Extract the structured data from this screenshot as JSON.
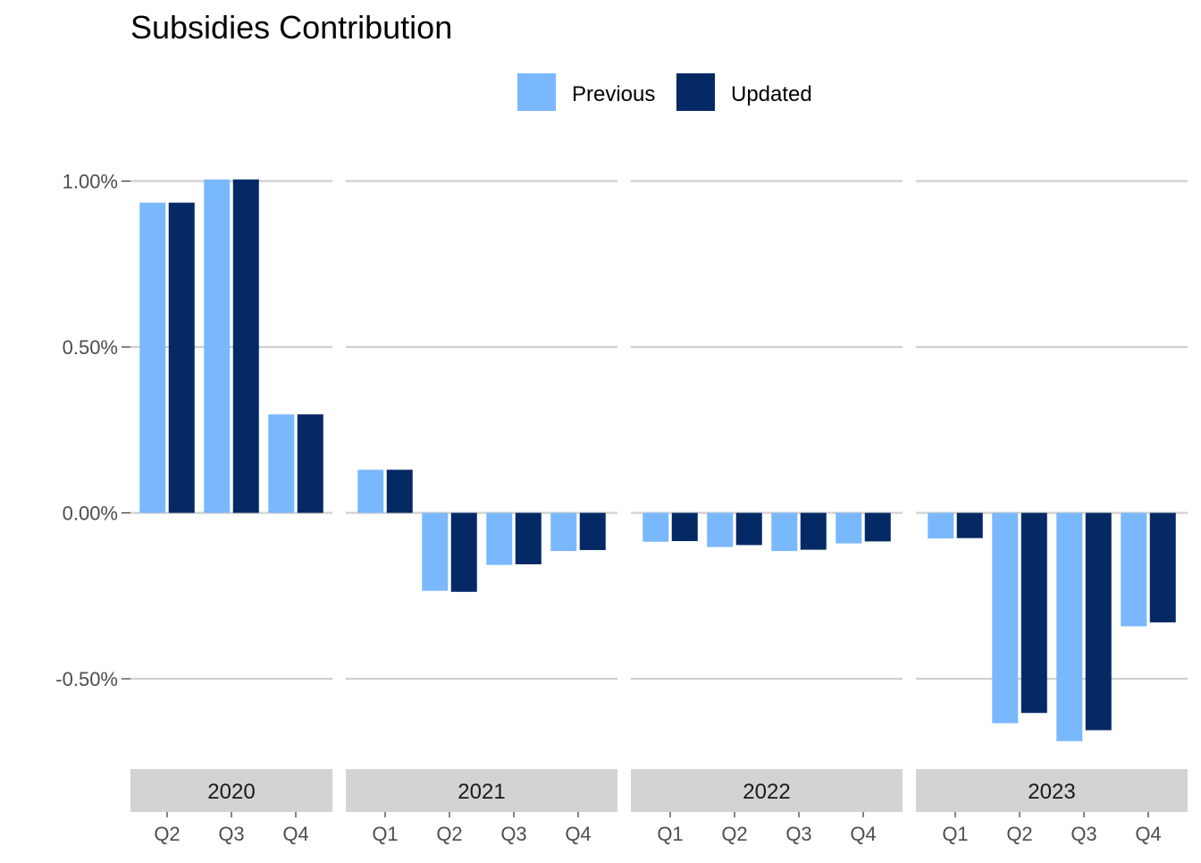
{
  "chart_data": {
    "type": "bar",
    "title": "Subsidies Contribution",
    "xlabel": "",
    "ylabel": "",
    "ylim": [
      -0.7,
      1.0
    ],
    "y_ticks": [
      {
        "value": 1.0,
        "label": "1.00%"
      },
      {
        "value": 0.5,
        "label": "0.50%"
      },
      {
        "value": 0.0,
        "label": "0.00%"
      },
      {
        "value": -0.5,
        "label": "-0.50%"
      }
    ],
    "grid": true,
    "legend_position": "top",
    "legend": [
      {
        "name": "Previous",
        "color": "#7ab8fd"
      },
      {
        "name": "Updated",
        "color": "#042965"
      }
    ],
    "facets": [
      {
        "label": "2020",
        "categories": [
          "Q2",
          "Q3",
          "Q4"
        ],
        "series": [
          {
            "name": "Previous",
            "values": [
              0.935,
              1.005,
              0.297
            ]
          },
          {
            "name": "Updated",
            "values": [
              0.935,
              1.005,
              0.297
            ]
          }
        ]
      },
      {
        "label": "2021",
        "categories": [
          "Q1",
          "Q2",
          "Q3",
          "Q4"
        ],
        "series": [
          {
            "name": "Previous",
            "values": [
              0.13,
              -0.235,
              -0.157,
              -0.115
            ]
          },
          {
            "name": "Updated",
            "values": [
              0.13,
              -0.238,
              -0.155,
              -0.112
            ]
          }
        ]
      },
      {
        "label": "2022",
        "categories": [
          "Q1",
          "Q2",
          "Q3",
          "Q4"
        ],
        "series": [
          {
            "name": "Previous",
            "values": [
              -0.087,
              -0.103,
              -0.115,
              -0.092
            ]
          },
          {
            "name": "Updated",
            "values": [
              -0.085,
              -0.097,
              -0.111,
              -0.086
            ]
          }
        ]
      },
      {
        "label": "2023",
        "categories": [
          "Q1",
          "Q2",
          "Q3",
          "Q4"
        ],
        "series": [
          {
            "name": "Previous",
            "values": [
              -0.077,
              -0.634,
              -0.688,
              -0.342
            ]
          },
          {
            "name": "Updated",
            "values": [
              -0.076,
              -0.603,
              -0.655,
              -0.33
            ]
          }
        ]
      }
    ]
  }
}
